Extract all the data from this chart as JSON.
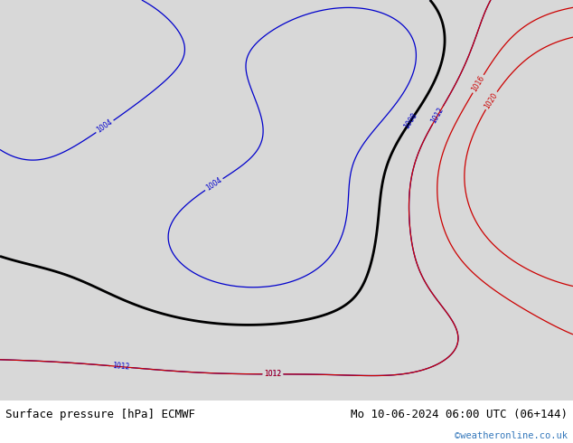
{
  "title_left": "Surface pressure [hPa] ECMWF",
  "title_right": "Mo 10-06-2024 06:00 UTC (06+144)",
  "watermark": "©weatheronline.co.uk",
  "bg_color": "#d8d8d8",
  "land_color": "#c8e8b0",
  "border_color": "#999999",
  "bottom_bar_color": "#ffffff",
  "text_color_left": "#000000",
  "text_color_right": "#000000",
  "watermark_color": "#3377bb",
  "isobar_blue_color": "#0000cc",
  "isobar_black_color": "#000000",
  "isobar_red_color": "#cc0000",
  "font_size_bottom": 9,
  "lon_min": 88,
  "lon_max": 162,
  "lat_min": -16,
  "lat_max": 52
}
